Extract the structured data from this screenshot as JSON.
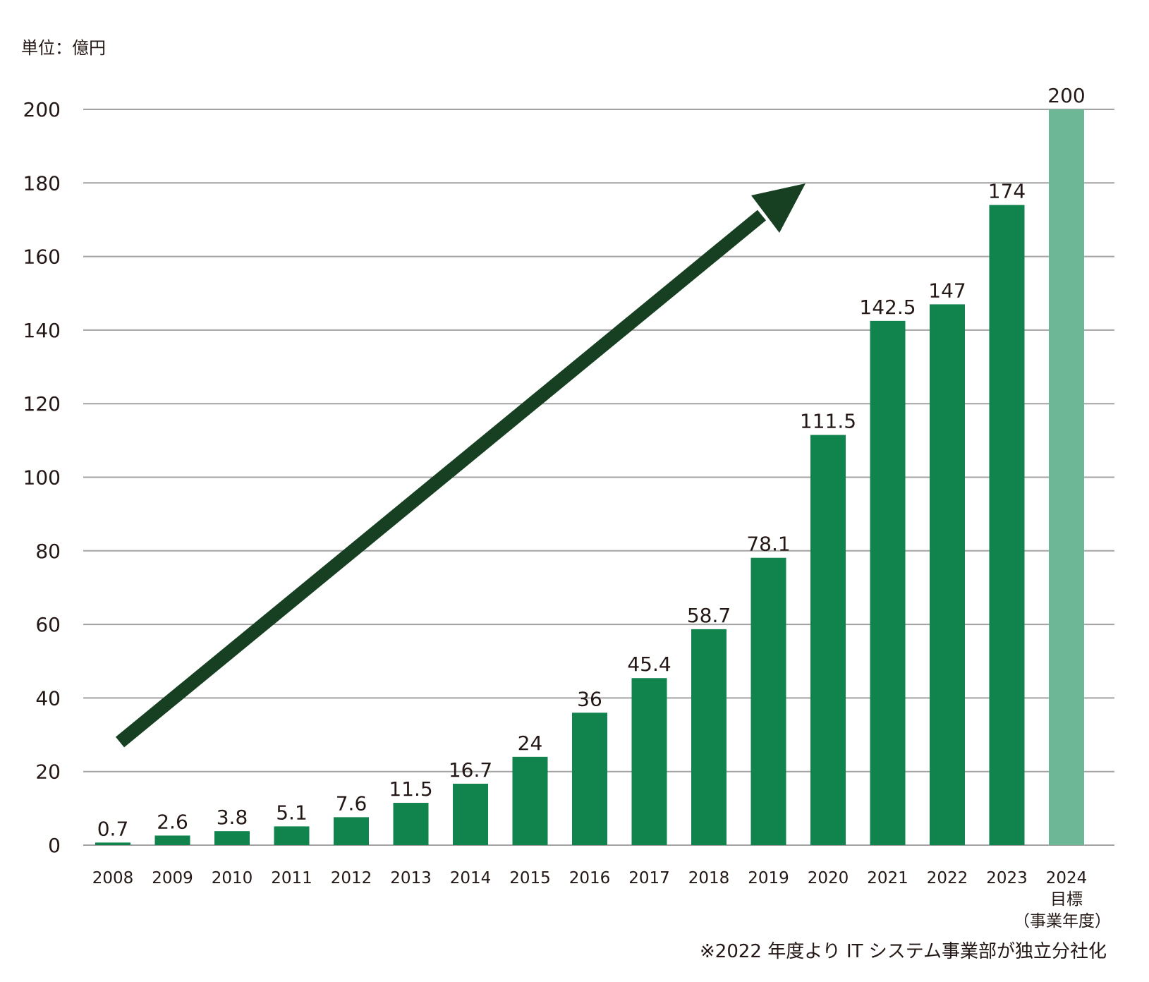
{
  "unit_label": "単位：億円",
  "note": "※2022 年度より IT システム事業部が独立分社化",
  "colors": {
    "bar": "#11834d",
    "target_bar": "#6db797",
    "arrow": "#173f22",
    "grid": "#a3a3a3"
  },
  "chart_data": {
    "type": "bar",
    "title": "",
    "xlabel": "",
    "ylabel": "単位：億円",
    "ylim": [
      0,
      200
    ],
    "yticks": [
      0,
      20,
      40,
      60,
      80,
      100,
      120,
      140,
      160,
      180,
      200
    ],
    "grid": true,
    "categories": [
      "2008",
      "2009",
      "2010",
      "2011",
      "2012",
      "2013",
      "2014",
      "2015",
      "2016",
      "2017",
      "2018",
      "2019",
      "2020",
      "2021",
      "2022",
      "2023",
      "2024"
    ],
    "category_sublabels": {
      "2024": [
        "目標",
        "（事業年度）"
      ]
    },
    "values": [
      0.7,
      2.6,
      3.8,
      5.1,
      7.6,
      11.5,
      16.7,
      24,
      36,
      45.4,
      58.7,
      78.1,
      111.5,
      142.5,
      147,
      174,
      200
    ],
    "value_labels": [
      "0.7",
      "2.6",
      "3.8",
      "5.1",
      "7.6",
      "11.5",
      "16.7",
      "24",
      "36",
      "45.4",
      "58.7",
      "78.1",
      "111.5",
      "142.5",
      "147",
      "174",
      "200"
    ],
    "target_category": "2024",
    "annotation": "upward trend arrow"
  }
}
